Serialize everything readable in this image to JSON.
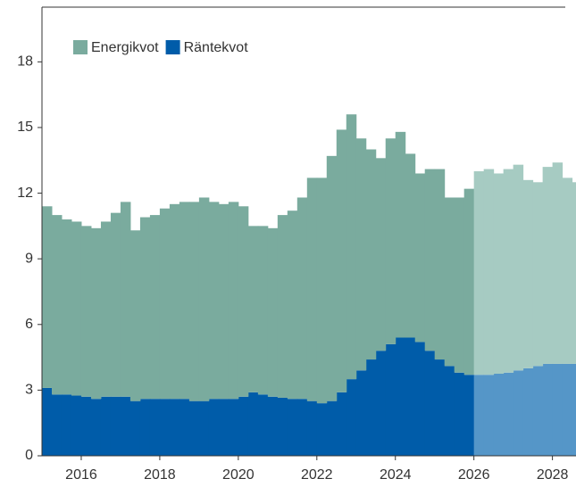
{
  "chart_data": {
    "type": "stacked-step-area",
    "x": [
      2015,
      2015.25,
      2015.5,
      2015.75,
      2016,
      2016.25,
      2016.5,
      2016.75,
      2017,
      2017.25,
      2017.5,
      2017.75,
      2018,
      2018.25,
      2018.5,
      2018.75,
      2019,
      2019.25,
      2019.5,
      2019.75,
      2020,
      2020.25,
      2020.5,
      2020.75,
      2021,
      2021.25,
      2021.5,
      2021.75,
      2022,
      2022.25,
      2022.5,
      2022.75,
      2023,
      2023.25,
      2023.5,
      2023.75,
      2024,
      2024.25,
      2024.5,
      2024.75,
      2025,
      2025.25,
      2025.5,
      2025.75,
      2026,
      2026.25,
      2026.5,
      2026.75,
      2027,
      2027.25,
      2027.5,
      2027.75,
      2028,
      2028.25,
      2028.5
    ],
    "series": [
      {
        "name": "Räntekvot",
        "color": "#005ca9",
        "forecast_color": "#5596c8",
        "values": [
          3.1,
          2.8,
          2.8,
          2.75,
          2.7,
          2.6,
          2.7,
          2.7,
          2.7,
          2.5,
          2.6,
          2.6,
          2.6,
          2.6,
          2.6,
          2.5,
          2.5,
          2.6,
          2.6,
          2.6,
          2.7,
          2.9,
          2.8,
          2.7,
          2.65,
          2.6,
          2.6,
          2.5,
          2.4,
          2.5,
          2.9,
          3.5,
          3.9,
          4.4,
          4.8,
          5.1,
          5.4,
          5.4,
          5.2,
          4.8,
          4.4,
          4.1,
          3.8,
          3.7,
          3.7,
          3.7,
          3.75,
          3.8,
          3.9,
          4.0,
          4.1,
          4.2,
          4.2,
          4.2,
          4.2
        ]
      },
      {
        "name": "Energikvot",
        "color": "#7aab9e",
        "forecast_color": "#a6cbc2",
        "values": [
          8.3,
          8.2,
          8.0,
          7.95,
          7.8,
          7.8,
          8.0,
          8.4,
          8.9,
          7.8,
          8.3,
          8.4,
          8.7,
          8.9,
          9.0,
          9.1,
          9.3,
          9.0,
          8.9,
          9.0,
          8.7,
          7.6,
          7.7,
          7.7,
          8.35,
          8.6,
          9.2,
          10.2,
          10.3,
          11.2,
          12.0,
          12.1,
          10.6,
          9.6,
          8.8,
          9.4,
          9.4,
          8.4,
          7.7,
          8.3,
          8.7,
          7.7,
          8.0,
          8.5,
          9.3,
          9.4,
          9.15,
          9.3,
          9.4,
          8.6,
          8.4,
          9.0,
          9.2,
          8.5,
          8.3
        ]
      }
    ],
    "step": 0.25,
    "forecast_from": 2026,
    "xlim": [
      2015,
      2028.6
    ],
    "xticks": [
      2016,
      2018,
      2020,
      2022,
      2024,
      2026,
      2028
    ],
    "ylim": [
      0,
      20.5
    ],
    "yticks": [
      0,
      3,
      6,
      9,
      12,
      15,
      18
    ],
    "legend": "upper left"
  }
}
